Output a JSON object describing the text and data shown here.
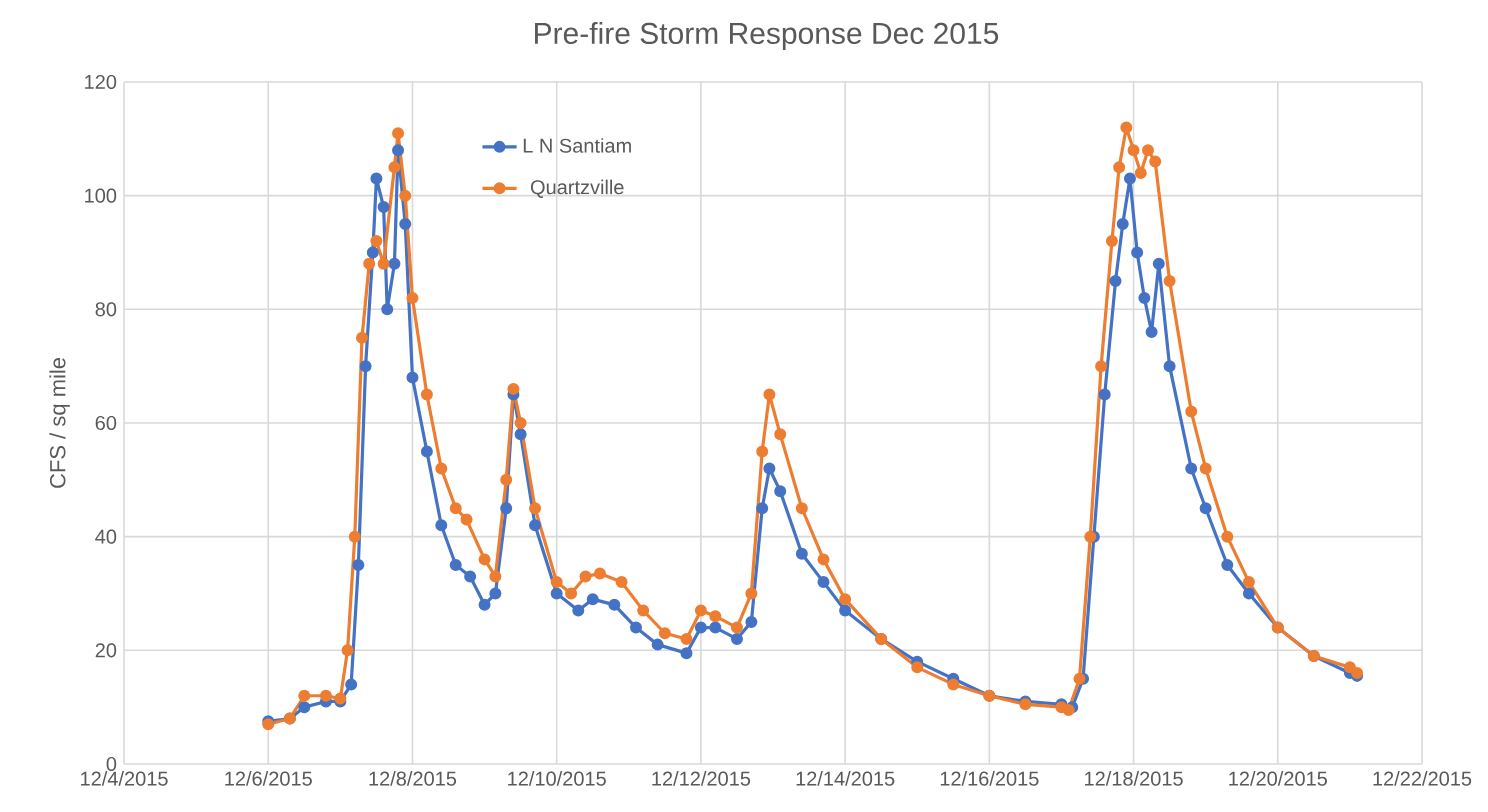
{
  "chart_data": {
    "type": "line",
    "title": "Pre-fire Storm Response  Dec 2015",
    "ylabel": "CFS / sq mile",
    "xlim": [
      "2015-12-04",
      "2015-12-22"
    ],
    "xticks": [
      {
        "value": "2015-12-04",
        "label": "12/4/2015"
      },
      {
        "value": "2015-12-06",
        "label": "12/6/2015"
      },
      {
        "value": "2015-12-08",
        "label": "12/8/2015"
      },
      {
        "value": "2015-12-10",
        "label": "12/10/2015"
      },
      {
        "value": "2015-12-12",
        "label": "12/12/2015"
      },
      {
        "value": "2015-12-14",
        "label": "12/14/2015"
      },
      {
        "value": "2015-12-16",
        "label": "12/16/2015"
      },
      {
        "value": "2015-12-18",
        "label": "12/18/2015"
      },
      {
        "value": "2015-12-20",
        "label": "12/20/2015"
      },
      {
        "value": "2015-12-22",
        "label": "12/22/2015"
      }
    ],
    "ylim": [
      0,
      120
    ],
    "yticks": [
      0,
      20,
      40,
      60,
      80,
      100,
      120
    ],
    "grid": true,
    "legend": "top left",
    "marker": "circle",
    "line_style": "solid",
    "series": [
      {
        "name": "L N Santiam",
        "color": "#4472c4",
        "x": [
          "2015-12-06T00:00",
          "2015-12-06T07:12",
          "2015-12-06T12:00",
          "2015-12-06T19:12",
          "2015-12-07T00:00",
          "2015-12-07T03:36",
          "2015-12-07T06:00",
          "2015-12-07T08:24",
          "2015-12-07T10:48",
          "2015-12-07T12:00",
          "2015-12-07T14:24",
          "2015-12-07T15:36",
          "2015-12-07T18:00",
          "2015-12-07T19:12",
          "2015-12-07T21:36",
          "2015-12-08T00:00",
          "2015-12-08T04:48",
          "2015-12-08T09:36",
          "2015-12-08T14:24",
          "2015-12-08T19:12",
          "2015-12-09T00:00",
          "2015-12-09T03:36",
          "2015-12-09T07:12",
          "2015-12-09T09:36",
          "2015-12-09T12:00",
          "2015-12-09T16:48",
          "2015-12-10T00:00",
          "2015-12-10T07:12",
          "2015-12-10T12:00",
          "2015-12-10T19:12",
          "2015-12-11T02:24",
          "2015-12-11T09:36",
          "2015-12-11T19:12",
          "2015-12-12T00:00",
          "2015-12-12T04:48",
          "2015-12-12T12:00",
          "2015-12-12T16:48",
          "2015-12-12T20:24",
          "2015-12-12T22:48",
          "2015-12-13T02:24",
          "2015-12-13T09:36",
          "2015-12-13T16:48",
          "2015-12-14T00:00",
          "2015-12-14T12:00",
          "2015-12-15T00:00",
          "2015-12-15T12:00",
          "2015-12-16T00:00",
          "2015-12-16T12:00",
          "2015-12-17T00:00",
          "2015-12-17T03:36",
          "2015-12-17T07:12",
          "2015-12-17T10:48",
          "2015-12-17T14:24",
          "2015-12-17T18:00",
          "2015-12-17T20:24",
          "2015-12-17T22:48",
          "2015-12-18T01:12",
          "2015-12-18T03:36",
          "2015-12-18T06:00",
          "2015-12-18T08:24",
          "2015-12-18T12:00",
          "2015-12-18T19:12",
          "2015-12-19T00:00",
          "2015-12-19T07:12",
          "2015-12-19T14:24",
          "2015-12-20T00:00",
          "2015-12-20T12:00",
          "2015-12-21T00:00",
          "2015-12-21T02:24"
        ],
        "values": [
          7.5,
          8,
          10,
          11,
          11,
          14,
          35,
          70,
          90,
          103,
          98,
          80,
          88,
          108,
          95,
          68,
          55,
          42,
          35,
          33,
          28,
          30,
          45,
          65,
          58,
          42,
          30,
          27,
          29,
          28,
          24,
          21,
          19.5,
          24,
          24,
          22,
          25,
          45,
          52,
          48,
          37,
          32,
          27,
          22,
          18,
          15,
          12,
          11,
          10.5,
          10,
          15,
          40,
          65,
          85,
          95,
          103,
          90,
          82,
          76,
          88,
          70,
          52,
          45,
          35,
          30,
          24,
          19,
          16,
          15.5
        ]
      },
      {
        "name": "Quartzville",
        "color": "#ed7d31",
        "x": [
          "2015-12-06T00:00",
          "2015-12-06T07:12",
          "2015-12-06T12:00",
          "2015-12-06T19:12",
          "2015-12-07T00:00",
          "2015-12-07T02:24",
          "2015-12-07T04:48",
          "2015-12-07T07:12",
          "2015-12-07T09:36",
          "2015-12-07T12:00",
          "2015-12-07T14:24",
          "2015-12-07T18:00",
          "2015-12-07T19:12",
          "2015-12-07T21:36",
          "2015-12-08T00:00",
          "2015-12-08T04:48",
          "2015-12-08T09:36",
          "2015-12-08T14:24",
          "2015-12-08T18:00",
          "2015-12-09T00:00",
          "2015-12-09T03:36",
          "2015-12-09T07:12",
          "2015-12-09T09:36",
          "2015-12-09T12:00",
          "2015-12-09T16:48",
          "2015-12-10T00:00",
          "2015-12-10T04:48",
          "2015-12-10T09:36",
          "2015-12-10T14:24",
          "2015-12-10T21:36",
          "2015-12-11T04:48",
          "2015-12-11T12:00",
          "2015-12-11T19:12",
          "2015-12-12T00:00",
          "2015-12-12T04:48",
          "2015-12-12T12:00",
          "2015-12-12T16:48",
          "2015-12-12T20:24",
          "2015-12-12T22:48",
          "2015-12-13T02:24",
          "2015-12-13T09:36",
          "2015-12-13T16:48",
          "2015-12-14T00:00",
          "2015-12-14T12:00",
          "2015-12-15T00:00",
          "2015-12-15T12:00",
          "2015-12-16T00:00",
          "2015-12-16T12:00",
          "2015-12-17T00:00",
          "2015-12-17T02:24",
          "2015-12-17T06:00",
          "2015-12-17T09:36",
          "2015-12-17T13:12",
          "2015-12-17T16:48",
          "2015-12-17T19:12",
          "2015-12-17T21:36",
          "2015-12-18T00:00",
          "2015-12-18T02:24",
          "2015-12-18T04:48",
          "2015-12-18T07:12",
          "2015-12-18T12:00",
          "2015-12-18T19:12",
          "2015-12-19T00:00",
          "2015-12-19T07:12",
          "2015-12-19T14:24",
          "2015-12-20T00:00",
          "2015-12-20T12:00",
          "2015-12-21T00:00",
          "2015-12-21T02:24"
        ],
        "values": [
          7,
          8,
          12,
          12,
          11.5,
          20,
          40,
          75,
          88,
          92,
          88,
          105,
          111,
          100,
          82,
          65,
          52,
          45,
          43,
          36,
          33,
          50,
          66,
          60,
          45,
          32,
          30,
          33,
          33.5,
          32,
          27,
          23,
          22,
          27,
          26,
          24,
          30,
          55,
          65,
          58,
          45,
          36,
          29,
          22,
          17,
          14,
          12,
          10.5,
          10,
          9.5,
          15,
          40,
          70,
          92,
          105,
          112,
          108,
          104,
          108,
          106,
          85,
          62,
          52,
          40,
          32,
          24,
          19,
          17,
          16
        ]
      }
    ]
  }
}
